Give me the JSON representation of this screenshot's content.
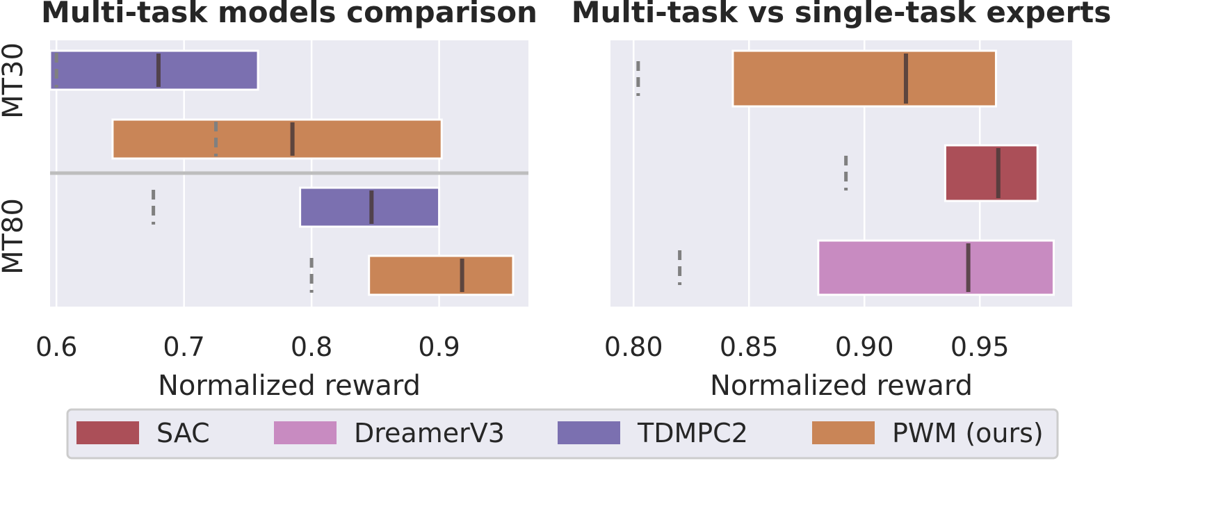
{
  "colors": {
    "SAC": "#ab4f58",
    "DreamerV3": "#c88bc1",
    "TDMPC2": "#7b70b0",
    "PWM (ours)": "#c98557",
    "panel_bg": "#eaeaf2",
    "median_line": "#4a3a3a",
    "mean_dash": "#808080",
    "separator": "#bdbdbd"
  },
  "legend": [
    "SAC",
    "DreamerV3",
    "TDMPC2",
    "PWM (ours)"
  ],
  "chart_data": [
    {
      "type": "bar",
      "title": "Multi-task models comparison",
      "xlabel": "Normalized reward",
      "xlim": [
        0.595,
        0.97
      ],
      "xticks": [
        0.6,
        0.7,
        0.8,
        0.9
      ],
      "xtick_labels": [
        "0.6",
        "0.7",
        "0.8",
        "0.9"
      ],
      "grid": true,
      "groups": [
        "MT30",
        "MT80"
      ],
      "bars": [
        {
          "group": "MT30",
          "series": "TDMPC2",
          "low": 0.595,
          "high": 0.758,
          "median": 0.68,
          "mean": 0.6
        },
        {
          "group": "MT30",
          "series": "PWM (ours)",
          "low": 0.644,
          "high": 0.902,
          "median": 0.785,
          "mean": 0.725
        },
        {
          "group": "MT80",
          "series": "TDMPC2",
          "low": 0.791,
          "high": 0.9,
          "median": 0.847,
          "mean": 0.676
        },
        {
          "group": "MT80",
          "series": "PWM (ours)",
          "low": 0.845,
          "high": 0.958,
          "median": 0.918,
          "mean": 0.8
        }
      ]
    },
    {
      "type": "bar",
      "title": "Multi-task vs single-task experts",
      "xlabel": "Normalized reward",
      "xlim": [
        0.79,
        0.99
      ],
      "xticks": [
        0.8,
        0.85,
        0.9,
        0.95
      ],
      "xtick_labels": [
        "0.80",
        "0.85",
        "0.90",
        "0.95"
      ],
      "grid": true,
      "bars": [
        {
          "series": "PWM (ours)",
          "low": 0.843,
          "high": 0.957,
          "median": 0.918,
          "mean": 0.802
        },
        {
          "series": "SAC",
          "low": 0.935,
          "high": 0.975,
          "median": 0.958,
          "mean": 0.892
        },
        {
          "series": "DreamerV3",
          "low": 0.88,
          "high": 0.982,
          "median": 0.945,
          "mean": 0.82
        }
      ]
    }
  ]
}
